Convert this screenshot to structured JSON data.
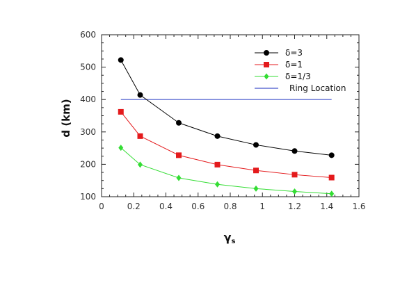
{
  "chart_data": {
    "type": "line",
    "title": "",
    "xlabel": "γ",
    "xlabel_sub": "s",
    "ylabel": "d (km)",
    "xlim": [
      0,
      1.6
    ],
    "ylim": [
      100,
      600
    ],
    "x_ticks": [
      0,
      0.2,
      0.4,
      0.6,
      0.8,
      1,
      1.2,
      1.4,
      1.6
    ],
    "x_tick_labels": [
      "0",
      "0.2",
      "0.4",
      "0.6",
      "0.8",
      "1",
      "1.2",
      "1.4",
      "1.6"
    ],
    "y_ticks": [
      100,
      200,
      300,
      400,
      500,
      600
    ],
    "y_tick_labels": [
      "100",
      "200",
      "300",
      "400",
      "500",
      "600"
    ],
    "grid": false,
    "legend_position": "top-right",
    "series": [
      {
        "name": "δ=3",
        "color": "#000000",
        "marker": "circle",
        "x": [
          0.12,
          0.24,
          0.48,
          0.72,
          0.96,
          1.2,
          1.43
        ],
        "y": [
          522,
          414,
          328,
          287,
          260,
          241,
          228
        ]
      },
      {
        "name": "δ=1",
        "color": "#e41a1c",
        "marker": "square",
        "x": [
          0.12,
          0.24,
          0.48,
          0.72,
          0.96,
          1.2,
          1.43
        ],
        "y": [
          362,
          287,
          228,
          199,
          181,
          168,
          159
        ]
      },
      {
        "name": "δ=1/3",
        "color": "#33dd33",
        "marker": "diamond",
        "x": [
          0.12,
          0.24,
          0.48,
          0.72,
          0.96,
          1.2,
          1.43
        ],
        "y": [
          251,
          199,
          158,
          138,
          125,
          116,
          109
        ]
      }
    ],
    "reference_line": {
      "name": "Ring Location",
      "color": "#4455cc",
      "y": 400,
      "x_start": 0.12,
      "x_end": 1.43
    }
  }
}
